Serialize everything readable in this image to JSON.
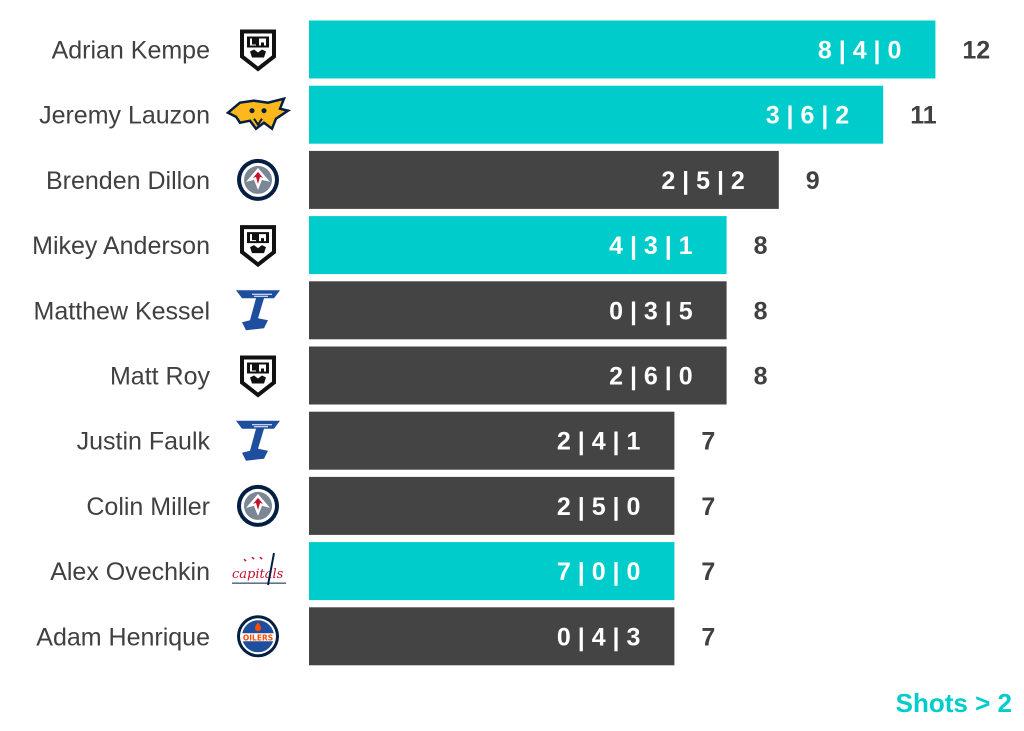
{
  "chart_data": {
    "type": "bar",
    "orientation": "horizontal",
    "categories": [
      "Adrian Kempe",
      "Jeremy Lauzon",
      "Brenden Dillon",
      "Mikey Anderson",
      "Matthew Kessel",
      "Matt Roy",
      "Justin Faulk",
      "Colin Miller",
      "Alex Ovechkin",
      "Adam Henrique"
    ],
    "values": [
      12,
      11,
      9,
      8,
      8,
      8,
      7,
      7,
      7,
      7
    ],
    "breakdown_labels": [
      "8 | 4 | 0",
      "3 | 6 | 2",
      "2 | 5 | 2",
      "4 | 3 | 1",
      "0 | 3 | 5",
      "2 | 6 | 0",
      "2 | 4 | 1",
      "2 | 5 | 0",
      "7 | 0 | 0",
      "0 | 4 | 3"
    ],
    "teams": [
      "LA Kings",
      "Nashville Predators",
      "Winnipeg Jets",
      "LA Kings",
      "St. Louis Blues",
      "LA Kings",
      "St. Louis Blues",
      "Winnipeg Jets",
      "Washington Capitals",
      "Edmonton Oilers"
    ],
    "highlighted": [
      true,
      true,
      false,
      true,
      false,
      false,
      false,
      false,
      true,
      false
    ],
    "xlim": [
      0,
      12
    ],
    "grid": false,
    "legend_note": "Shots > 2",
    "colors": {
      "highlight": "#00CCCC",
      "default": "#444444",
      "total_text": "#404040"
    }
  }
}
